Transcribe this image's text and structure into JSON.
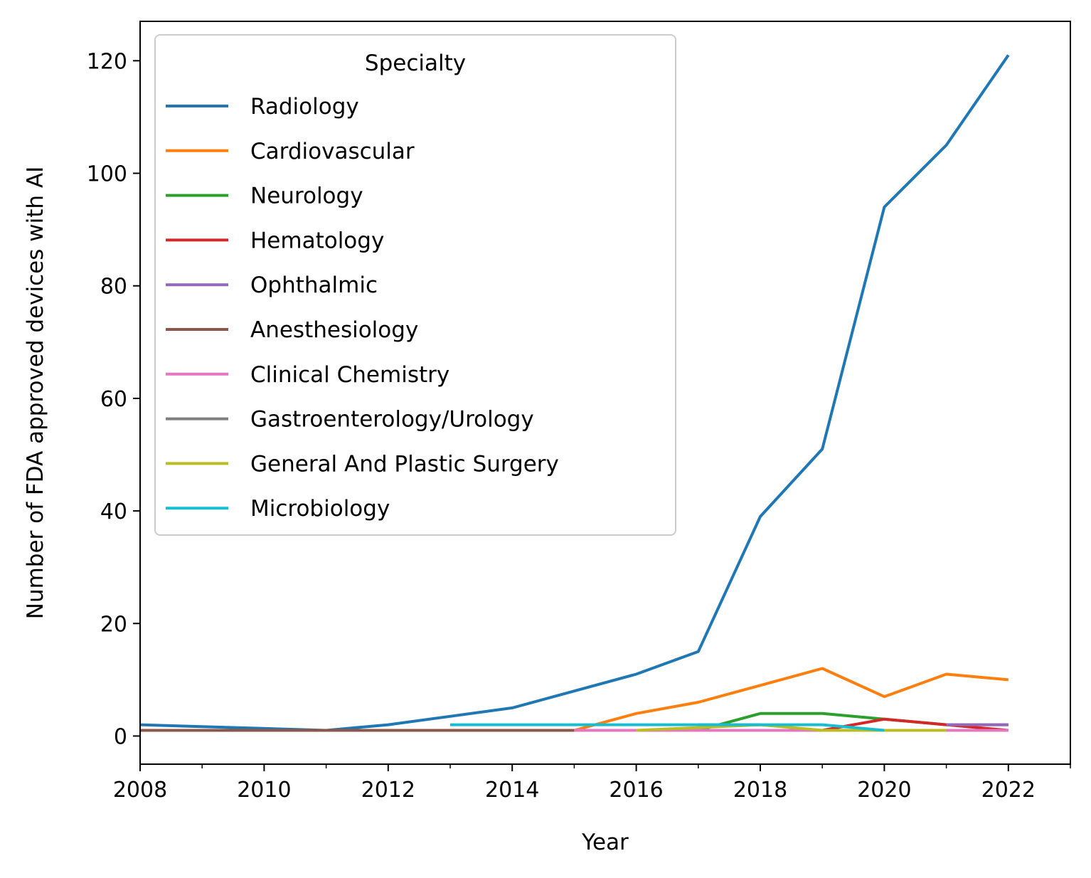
{
  "chart_data": {
    "type": "line",
    "xlabel": "Year",
    "ylabel": "Number of FDA approved devices with AI",
    "xlim": [
      2008,
      2023
    ],
    "ylim": [
      -5,
      127
    ],
    "x_ticks": [
      2008,
      2010,
      2012,
      2014,
      2016,
      2018,
      2020,
      2022
    ],
    "x_ticks_minor": [
      2009,
      2011,
      2013,
      2015,
      2017,
      2019,
      2021,
      2023
    ],
    "y_ticks": [
      0,
      20,
      40,
      60,
      80,
      100,
      120
    ],
    "grid": false,
    "legend": {
      "title": "Specialty",
      "placement": "top-left"
    },
    "series": [
      {
        "name": "Radiology",
        "color": "#1f77b4",
        "points": [
          [
            2008,
            2
          ],
          [
            2011,
            1
          ],
          [
            2012,
            2
          ],
          [
            2014,
            5
          ],
          [
            2016,
            11
          ],
          [
            2017,
            15
          ],
          [
            2018,
            39
          ],
          [
            2019,
            51
          ],
          [
            2020,
            94
          ],
          [
            2021,
            105
          ],
          [
            2022,
            121
          ]
        ]
      },
      {
        "name": "Cardiovascular",
        "color": "#ff7f0e",
        "points": [
          [
            2015,
            1
          ],
          [
            2016,
            4
          ],
          [
            2017,
            6
          ],
          [
            2018,
            9
          ],
          [
            2019,
            12
          ],
          [
            2020,
            7
          ],
          [
            2021,
            11
          ],
          [
            2022,
            10
          ]
        ]
      },
      {
        "name": "Neurology",
        "color": "#2ca02c",
        "points": [
          [
            2016,
            1
          ],
          [
            2017,
            1
          ],
          [
            2018,
            4
          ],
          [
            2019,
            4
          ],
          [
            2020,
            3
          ],
          [
            2021,
            2
          ],
          [
            2022,
            2
          ]
        ]
      },
      {
        "name": "Hematology",
        "color": "#d62728",
        "points": [
          [
            2019,
            1
          ],
          [
            2020,
            3
          ],
          [
            2021,
            2
          ],
          [
            2022,
            1
          ]
        ]
      },
      {
        "name": "Ophthalmic",
        "color": "#9467bd",
        "points": [
          [
            2021,
            2
          ],
          [
            2022,
            2
          ]
        ]
      },
      {
        "name": "Anesthesiology",
        "color": "#8c564b",
        "points": [
          [
            2008,
            1
          ],
          [
            2015,
            1
          ]
        ]
      },
      {
        "name": "Clinical Chemistry",
        "color": "#e377c2",
        "points": [
          [
            2015,
            1
          ],
          [
            2016,
            1
          ],
          [
            2017,
            1
          ],
          [
            2018,
            1
          ],
          [
            2019,
            1
          ],
          [
            2020,
            1
          ],
          [
            2021,
            1
          ],
          [
            2022,
            1
          ]
        ]
      },
      {
        "name": "Gastroenterology/Urology",
        "color": "#7f7f7f",
        "points": [
          [
            2017,
            2
          ],
          [
            2018,
            2
          ]
        ]
      },
      {
        "name": "General And Plastic Surgery",
        "color": "#bcbd22",
        "points": [
          [
            2016,
            1
          ],
          [
            2017,
            1.5
          ],
          [
            2018,
            2
          ],
          [
            2019,
            1
          ],
          [
            2020,
            1
          ],
          [
            2021,
            1
          ]
        ]
      },
      {
        "name": "Microbiology",
        "color": "#17becf",
        "points": [
          [
            2013,
            2
          ],
          [
            2014,
            2
          ],
          [
            2015,
            2
          ],
          [
            2016,
            2
          ],
          [
            2017,
            2
          ],
          [
            2018,
            2
          ],
          [
            2019,
            2
          ],
          [
            2020,
            1
          ]
        ]
      }
    ]
  }
}
